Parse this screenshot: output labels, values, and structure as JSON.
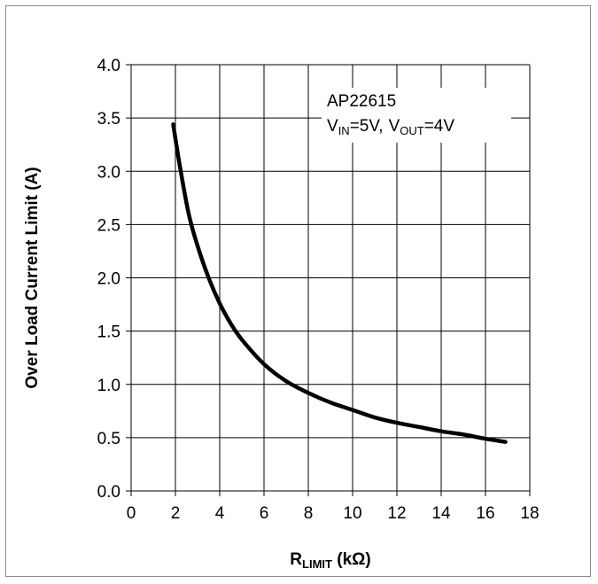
{
  "chart_data": {
    "type": "line",
    "title": "",
    "xlabel": {
      "main": "R",
      "sub": "LIMIT",
      "unit": " (kΩ)"
    },
    "ylabel": "Over Load Current Limit (A)",
    "xlim": [
      0,
      18
    ],
    "ylim": [
      0,
      4.0
    ],
    "x_ticks": [
      "0",
      "2",
      "4",
      "6",
      "8",
      "10",
      "12",
      "14",
      "16",
      "18"
    ],
    "y_ticks": [
      "0.0",
      "0.5",
      "1.0",
      "1.5",
      "2.0",
      "2.5",
      "3.0",
      "3.5",
      "4.0"
    ],
    "grid": true,
    "legend": "none",
    "annotation": {
      "part": "AP22615",
      "vin_label": "V",
      "vin_sub": "IN",
      "vin_value": "=5V,",
      "vout_label": "V",
      "vout_sub": "OUT",
      "vout_value": "=4V"
    },
    "series": [
      {
        "color": "#000000",
        "x": [
          1.9,
          2.2,
          2.6,
          3.0,
          3.5,
          4.0,
          4.5,
          5.0,
          6.0,
          7.0,
          8.0,
          9.0,
          10.0,
          11.0,
          12.0,
          13.0,
          14.0,
          15.0,
          16.0,
          16.9
        ],
        "y": [
          3.44,
          3.05,
          2.6,
          2.3,
          2.0,
          1.76,
          1.57,
          1.42,
          1.19,
          1.03,
          0.92,
          0.83,
          0.76,
          0.69,
          0.64,
          0.6,
          0.56,
          0.53,
          0.49,
          0.46
        ]
      }
    ]
  }
}
